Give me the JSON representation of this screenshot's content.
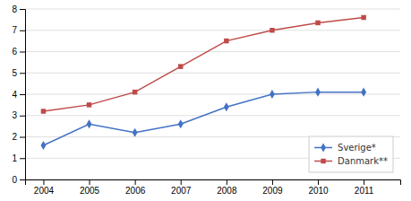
{
  "chart_data": {
    "type": "line",
    "x": [
      2004,
      2005,
      2006,
      2007,
      2008,
      2009,
      2010,
      2011
    ],
    "series": [
      {
        "name": "Sverige*",
        "color": "#4472C4",
        "marker": "diamond",
        "values": [
          1.6,
          2.6,
          2.2,
          2.6,
          3.4,
          4.0,
          4.1,
          4.1
        ]
      },
      {
        "name": "Danmark**",
        "color": "#BE4B48",
        "marker": "square",
        "values": [
          3.2,
          3.5,
          4.1,
          5.3,
          6.5,
          7.0,
          7.35,
          7.6
        ]
      }
    ],
    "xlim": [
      2003.6,
      2011.8
    ],
    "xticks": [
      2004,
      2005,
      2006,
      2007,
      2008,
      2009,
      2010,
      2011
    ],
    "ylim": [
      0,
      8
    ],
    "yticks": [
      0,
      1,
      2,
      3,
      4,
      5,
      6,
      7,
      8
    ],
    "grid": true,
    "legend": "lower right"
  }
}
